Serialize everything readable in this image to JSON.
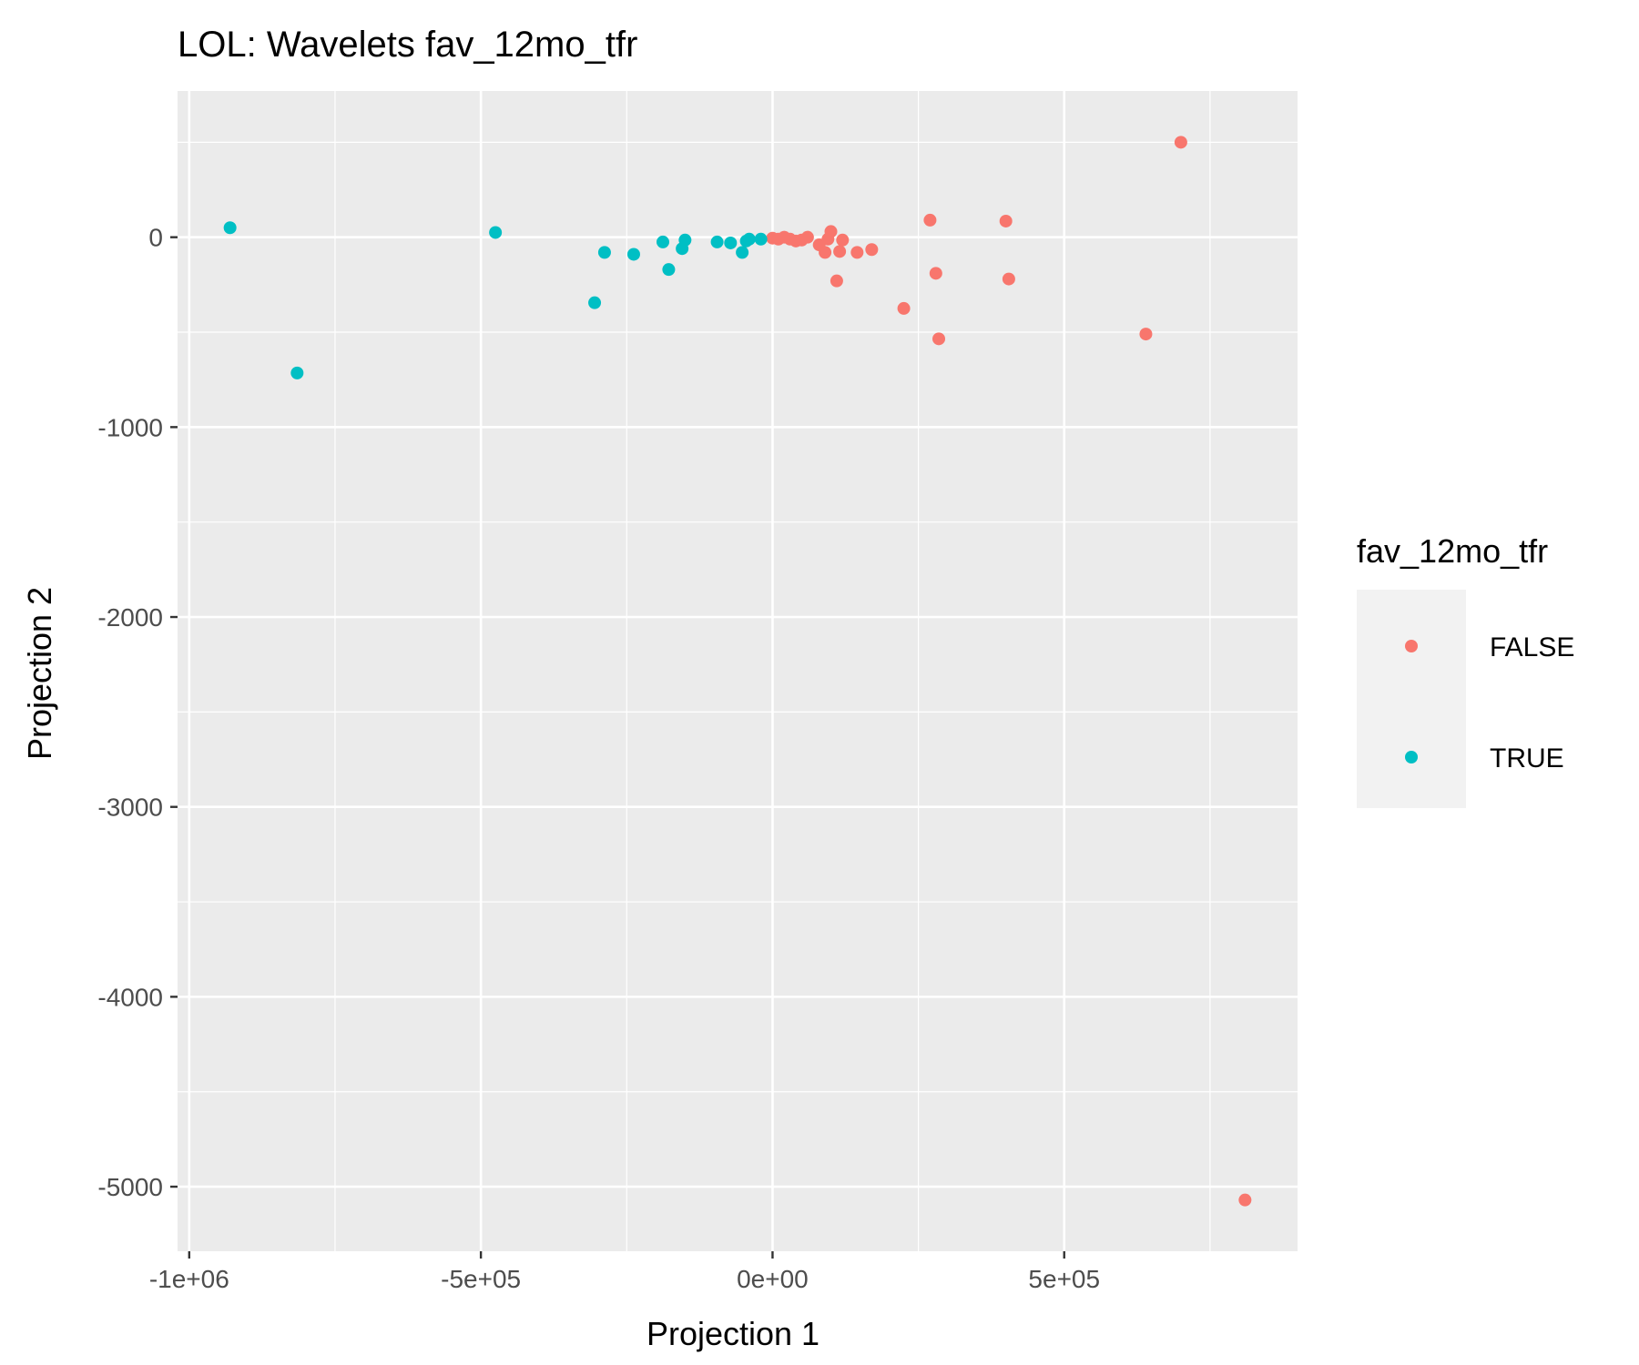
{
  "chart_data": {
    "type": "scatter",
    "title": "LOL: Wavelets fav_12mo_tfr",
    "xlabel": "Projection 1",
    "ylabel": "Projection 2",
    "xlim": [
      -1020000,
      900000
    ],
    "ylim": [
      -5340000,
      770
    ],
    "xticks": [
      {
        "value": -1000000,
        "label": "-1e+06"
      },
      {
        "value": -500000,
        "label": "-5e+05"
      },
      {
        "value": 0,
        "label": "0e+00"
      },
      {
        "value": 500000,
        "label": "5e+05"
      }
    ],
    "yticks": [
      {
        "value": 0,
        "label": "0"
      },
      {
        "value": -1000,
        "label": "-1000"
      },
      {
        "value": -2000,
        "label": "-2000"
      },
      {
        "value": -3000,
        "label": "-3000"
      },
      {
        "value": -4000,
        "label": "-4000"
      },
      {
        "value": -5000,
        "label": "-5000"
      }
    ],
    "grid": true,
    "legend": {
      "title": "fav_12mo_tfr",
      "position": "right",
      "entries": [
        {
          "label": "FALSE",
          "color": "#F8766D"
        },
        {
          "label": "TRUE",
          "color": "#00BFC4"
        }
      ]
    },
    "series": [
      {
        "name": "FALSE",
        "color": "#F8766D",
        "points": [
          [
            700000,
            500
          ],
          [
            270000,
            90
          ],
          [
            400000,
            85
          ],
          [
            640000,
            -510
          ],
          [
            810000,
            -5070
          ],
          [
            280000,
            -190
          ],
          [
            405000,
            -220
          ],
          [
            225000,
            -375
          ],
          [
            285000,
            -535
          ],
          [
            110000,
            -230
          ],
          [
            100000,
            30
          ],
          [
            120000,
            -15
          ],
          [
            170000,
            -65
          ],
          [
            145000,
            -80
          ],
          [
            115000,
            -75
          ],
          [
            90000,
            -80
          ],
          [
            80000,
            -40
          ],
          [
            60000,
            0
          ],
          [
            40000,
            -20
          ],
          [
            30000,
            -10
          ],
          [
            20000,
            0
          ],
          [
            10000,
            -10
          ],
          [
            0,
            -5
          ],
          [
            50000,
            -15
          ],
          [
            95000,
            -10
          ]
        ]
      },
      {
        "name": "TRUE",
        "color": "#00BFC4",
        "points": [
          [
            -930000,
            50
          ],
          [
            -815000,
            -715
          ],
          [
            -475000,
            25
          ],
          [
            -305000,
            -345
          ],
          [
            -288000,
            -80
          ],
          [
            -238000,
            -90
          ],
          [
            -188000,
            -25
          ],
          [
            -178000,
            -170
          ],
          [
            -155000,
            -60
          ],
          [
            -150000,
            -15
          ],
          [
            -95000,
            -25
          ],
          [
            -72000,
            -30
          ],
          [
            -52000,
            -80
          ],
          [
            -45000,
            -20
          ],
          [
            -40000,
            -10
          ],
          [
            -20000,
            -10
          ]
        ]
      }
    ]
  }
}
